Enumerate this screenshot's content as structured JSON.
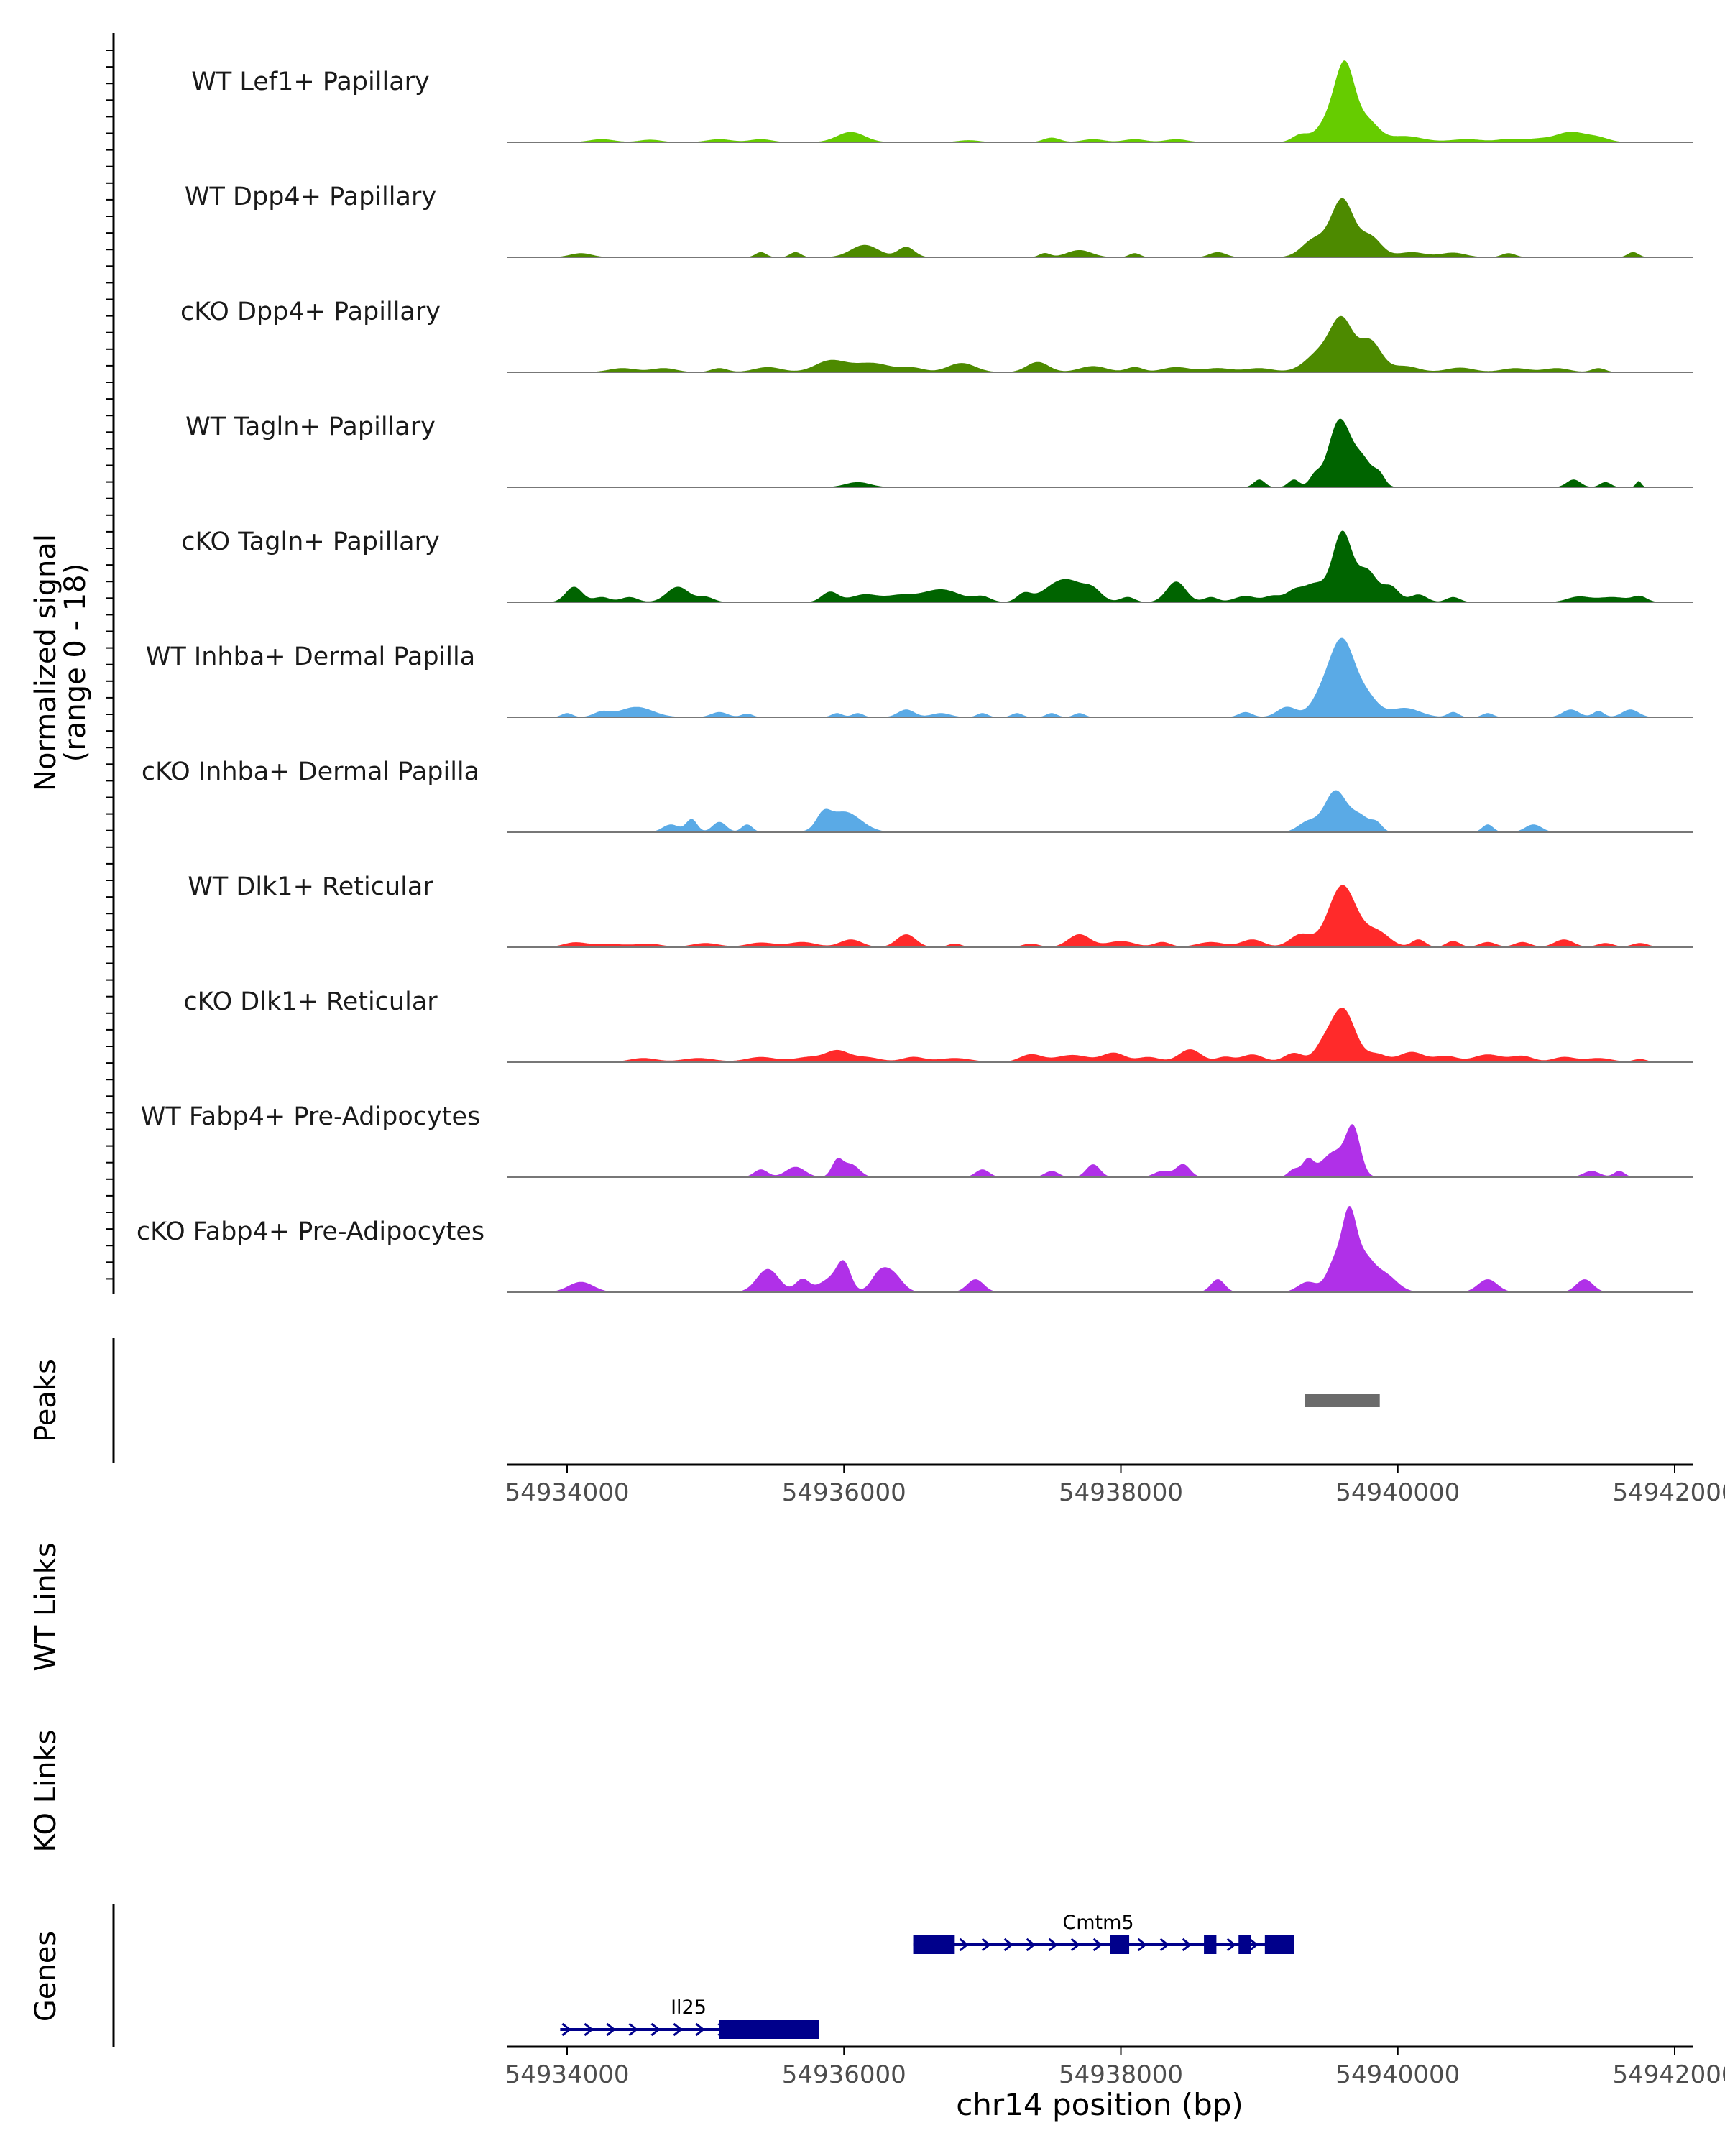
{
  "chart_data": {
    "type": "area",
    "title": "",
    "xlabel": "chr14 position (bp)",
    "ylabel": "Normalized signal",
    "ylabel_range": "(range 0 - 18)",
    "ylim": [
      0,
      18
    ],
    "xlim": [
      54933600,
      54942000
    ],
    "x_ticks": [
      54934000,
      54936000,
      54938000,
      54940000,
      54942000
    ],
    "x_tick_labels": [
      "54934000",
      "54936000",
      "54938000",
      "54940000",
      "54942000"
    ],
    "tracks": [
      {
        "name": "WT Lef1+ Papillary",
        "color": "#66cc00",
        "peaks": [
          [
            54934250,
            0.6,
            90
          ],
          [
            54934600,
            0.5,
            80
          ],
          [
            54935100,
            0.6,
            90
          ],
          [
            54935400,
            0.6,
            80
          ],
          [
            54936050,
            2.0,
            100
          ],
          [
            54936900,
            0.4,
            80
          ],
          [
            54937500,
            0.9,
            60
          ],
          [
            54937800,
            0.6,
            80
          ],
          [
            54938100,
            0.6,
            80
          ],
          [
            54938400,
            0.6,
            80
          ],
          [
            54939300,
            1.5,
            60
          ],
          [
            54939500,
            4.0,
            80
          ],
          [
            54939620,
            14.0,
            70
          ],
          [
            54939780,
            4.0,
            80
          ],
          [
            54940050,
            1.2,
            130
          ],
          [
            54940500,
            0.6,
            120
          ],
          [
            54940800,
            0.6,
            80
          ],
          [
            54941000,
            0.6,
            90
          ],
          [
            54941250,
            2.0,
            110
          ],
          [
            54941450,
            0.8,
            80
          ]
        ]
      },
      {
        "name": "WT Dpp4+ Papillary",
        "color": "#4d8a00",
        "peaks": [
          [
            54934100,
            0.8,
            80
          ],
          [
            54935400,
            1.0,
            40
          ],
          [
            54935650,
            1.0,
            40
          ],
          [
            54936150,
            2.4,
            100
          ],
          [
            54936450,
            2.0,
            60
          ],
          [
            54937450,
            0.8,
            40
          ],
          [
            54937700,
            1.4,
            90
          ],
          [
            54938100,
            0.8,
            40
          ],
          [
            54938700,
            1.0,
            60
          ],
          [
            54939400,
            3.5,
            90
          ],
          [
            54939600,
            11.0,
            80
          ],
          [
            54939800,
            4.0,
            80
          ],
          [
            54940100,
            1.0,
            100
          ],
          [
            54940400,
            0.9,
            90
          ],
          [
            54940800,
            0.8,
            50
          ],
          [
            54941700,
            1.0,
            40
          ]
        ]
      },
      {
        "name": "cKO Dpp4+ Papillary",
        "color": "#4d8a00",
        "peaks": [
          [
            54934400,
            0.8,
            100
          ],
          [
            54934700,
            0.8,
            90
          ],
          [
            54935100,
            0.8,
            60
          ],
          [
            54935450,
            1.0,
            100
          ],
          [
            54935900,
            2.2,
            110
          ],
          [
            54936200,
            1.8,
            140
          ],
          [
            54936500,
            0.8,
            80
          ],
          [
            54936850,
            1.8,
            100
          ],
          [
            54937400,
            2.0,
            80
          ],
          [
            54937800,
            1.2,
            100
          ],
          [
            54938100,
            1.0,
            60
          ],
          [
            54938400,
            1.0,
            100
          ],
          [
            54938700,
            0.8,
            100
          ],
          [
            54939000,
            0.8,
            100
          ],
          [
            54939450,
            4.0,
            110
          ],
          [
            54939600,
            9.0,
            80
          ],
          [
            54939800,
            6.0,
            80
          ],
          [
            54940050,
            1.2,
            100
          ],
          [
            54940450,
            0.9,
            100
          ],
          [
            54940850,
            0.8,
            100
          ],
          [
            54941150,
            0.8,
            90
          ],
          [
            54941450,
            0.8,
            50
          ]
        ]
      },
      {
        "name": "WT Tagln+ Papillary",
        "color": "#006400",
        "peaks": [
          [
            54936100,
            1.0,
            90
          ],
          [
            54939000,
            1.5,
            40
          ],
          [
            54939250,
            1.5,
            40
          ],
          [
            54939400,
            2.0,
            40
          ],
          [
            54939580,
            13.0,
            80
          ],
          [
            54939750,
            5.0,
            70
          ],
          [
            54939870,
            2.0,
            40
          ],
          [
            54941270,
            1.5,
            50
          ],
          [
            54941500,
            1.0,
            40
          ],
          [
            54941740,
            1.2,
            20
          ]
        ]
      },
      {
        "name": "cKO Tagln+ Papillary",
        "color": "#006400",
        "peaks": [
          [
            54934050,
            3.0,
            60
          ],
          [
            54934250,
            1.0,
            60
          ],
          [
            54934450,
            1.0,
            60
          ],
          [
            54934800,
            3.0,
            80
          ],
          [
            54935000,
            1.0,
            60
          ],
          [
            54935900,
            2.0,
            60
          ],
          [
            54936150,
            1.5,
            100
          ],
          [
            54936400,
            1.2,
            100
          ],
          [
            54936700,
            2.5,
            140
          ],
          [
            54937000,
            1.0,
            60
          ],
          [
            54937300,
            1.5,
            50
          ],
          [
            54937600,
            4.5,
            140
          ],
          [
            54937800,
            1.5,
            60
          ],
          [
            54938050,
            1.0,
            50
          ],
          [
            54938400,
            4.0,
            70
          ],
          [
            54938650,
            1.0,
            50
          ],
          [
            54938900,
            1.2,
            80
          ],
          [
            54939100,
            1.2,
            60
          ],
          [
            54939250,
            2.0,
            60
          ],
          [
            54939400,
            3.5,
            80
          ],
          [
            54939600,
            13.5,
            70
          ],
          [
            54939780,
            6.0,
            70
          ],
          [
            54939950,
            3.0,
            60
          ],
          [
            54940150,
            1.5,
            60
          ],
          [
            54940400,
            1.0,
            50
          ],
          [
            54941300,
            1.0,
            80
          ],
          [
            54941550,
            1.0,
            120
          ],
          [
            54941750,
            1.0,
            50
          ]
        ]
      },
      {
        "name": "WT Inhba+ Dermal Papilla",
        "color": "#5aaae6",
        "peaks": [
          [
            54934000,
            0.8,
            40
          ],
          [
            54934250,
            1.0,
            60
          ],
          [
            54934500,
            2.0,
            120
          ],
          [
            54935100,
            1.0,
            60
          ],
          [
            54935300,
            0.7,
            40
          ],
          [
            54935950,
            0.8,
            40
          ],
          [
            54936100,
            0.8,
            40
          ],
          [
            54936450,
            1.5,
            60
          ],
          [
            54936700,
            0.8,
            70
          ],
          [
            54937000,
            0.8,
            40
          ],
          [
            54937250,
            0.8,
            40
          ],
          [
            54937500,
            0.8,
            40
          ],
          [
            54937700,
            0.8,
            40
          ],
          [
            54938900,
            1.0,
            50
          ],
          [
            54939200,
            2.0,
            70
          ],
          [
            54939450,
            3.5,
            80
          ],
          [
            54939600,
            14.5,
            90
          ],
          [
            54939780,
            3.5,
            80
          ],
          [
            54940050,
            1.8,
            110
          ],
          [
            54940400,
            1.0,
            40
          ],
          [
            54940650,
            0.8,
            40
          ],
          [
            54941250,
            1.5,
            60
          ],
          [
            54941450,
            1.2,
            40
          ],
          [
            54941680,
            1.5,
            60
          ]
        ]
      },
      {
        "name": "cKO Inhba+ Dermal Papilla",
        "color": "#5aaae6",
        "peaks": [
          [
            54934750,
            1.5,
            60
          ],
          [
            54934900,
            2.5,
            40
          ],
          [
            54935100,
            2.0,
            50
          ],
          [
            54935300,
            1.5,
            40
          ],
          [
            54935850,
            2.5,
            50
          ],
          [
            54936000,
            4.0,
            120
          ],
          [
            54939350,
            2.0,
            70
          ],
          [
            54939550,
            8.0,
            80
          ],
          [
            54939730,
            3.0,
            70
          ],
          [
            54939850,
            1.5,
            40
          ],
          [
            54940650,
            1.5,
            40
          ],
          [
            54940980,
            1.5,
            60
          ]
        ]
      },
      {
        "name": "WT Dlk1+ Reticular",
        "color": "#ff2a2a",
        "peaks": [
          [
            54934050,
            0.8,
            80
          ],
          [
            54934300,
            0.6,
            150
          ],
          [
            54934600,
            0.6,
            90
          ],
          [
            54935000,
            0.8,
            100
          ],
          [
            54935400,
            0.9,
            100
          ],
          [
            54935700,
            1.0,
            100
          ],
          [
            54936050,
            1.5,
            80
          ],
          [
            54936450,
            2.5,
            70
          ],
          [
            54936800,
            0.7,
            50
          ],
          [
            54937350,
            0.7,
            60
          ],
          [
            54937700,
            2.5,
            80
          ],
          [
            54938000,
            1.2,
            100
          ],
          [
            54938300,
            1.0,
            60
          ],
          [
            54938650,
            1.0,
            100
          ],
          [
            54938950,
            1.5,
            80
          ],
          [
            54939300,
            2.5,
            80
          ],
          [
            54939600,
            12.0,
            100
          ],
          [
            54939850,
            3.0,
            90
          ],
          [
            54940150,
            1.5,
            50
          ],
          [
            54940400,
            1.2,
            50
          ],
          [
            54940650,
            1.0,
            60
          ],
          [
            54940900,
            1.0,
            60
          ],
          [
            54941200,
            1.5,
            70
          ],
          [
            54941500,
            0.8,
            60
          ],
          [
            54941750,
            0.8,
            60
          ]
        ]
      },
      {
        "name": "cKO Dlk1+ Reticular",
        "color": "#ff2a2a",
        "peaks": [
          [
            54934550,
            0.8,
            100
          ],
          [
            54934950,
            0.8,
            120
          ],
          [
            54935400,
            1.0,
            110
          ],
          [
            54935750,
            1.0,
            110
          ],
          [
            54935950,
            2.0,
            80
          ],
          [
            54936150,
            1.0,
            110
          ],
          [
            54936500,
            1.0,
            80
          ],
          [
            54936800,
            0.8,
            120
          ],
          [
            54937350,
            1.5,
            80
          ],
          [
            54937650,
            1.4,
            120
          ],
          [
            54937950,
            1.8,
            80
          ],
          [
            54938200,
            1.0,
            80
          ],
          [
            54938500,
            2.5,
            80
          ],
          [
            54938750,
            1.0,
            60
          ],
          [
            54938950,
            1.5,
            80
          ],
          [
            54939250,
            1.8,
            70
          ],
          [
            54939450,
            2.0,
            60
          ],
          [
            54939600,
            10.5,
            90
          ],
          [
            54939850,
            1.5,
            70
          ],
          [
            54940100,
            2.0,
            90
          ],
          [
            54940350,
            1.2,
            80
          ],
          [
            54940650,
            1.5,
            100
          ],
          [
            54940900,
            1.2,
            80
          ],
          [
            54941200,
            1.0,
            80
          ],
          [
            54941450,
            0.8,
            100
          ],
          [
            54941750,
            0.6,
            50
          ]
        ]
      },
      {
        "name": "WT Fabp4+ Pre-Adipocytes",
        "color": "#b030e8",
        "peaks": [
          [
            54935400,
            1.5,
            50
          ],
          [
            54935650,
            2.0,
            70
          ],
          [
            54935950,
            3.0,
            40
          ],
          [
            54936050,
            2.5,
            60
          ],
          [
            54937000,
            1.5,
            50
          ],
          [
            54937500,
            1.2,
            50
          ],
          [
            54937800,
            2.5,
            50
          ],
          [
            54938300,
            1.2,
            60
          ],
          [
            54938450,
            2.5,
            50
          ],
          [
            54939250,
            1.5,
            40
          ],
          [
            54939350,
            3.0,
            40
          ],
          [
            54939550,
            5.0,
            100
          ],
          [
            54939680,
            8.0,
            50
          ],
          [
            54941400,
            1.2,
            60
          ],
          [
            54941600,
            1.2,
            40
          ]
        ]
      },
      {
        "name": "cKO Fabp4+ Pre-Adipocytes",
        "color": "#b030e8",
        "peaks": [
          [
            54934100,
            2.0,
            90
          ],
          [
            54935450,
            4.5,
            80
          ],
          [
            54935700,
            2.5,
            50
          ],
          [
            54935900,
            2.5,
            80
          ],
          [
            54936000,
            5.0,
            50
          ],
          [
            54936250,
            3.0,
            60
          ],
          [
            54936350,
            3.5,
            70
          ],
          [
            54936950,
            2.5,
            60
          ],
          [
            54938700,
            2.5,
            50
          ],
          [
            54939350,
            2.0,
            70
          ],
          [
            54939550,
            6.0,
            60
          ],
          [
            54939650,
            13.0,
            50
          ],
          [
            54939750,
            6.0,
            70
          ],
          [
            54939900,
            3.5,
            90
          ],
          [
            54940650,
            2.5,
            70
          ],
          [
            54941350,
            2.5,
            60
          ]
        ]
      }
    ],
    "peaks_track": {
      "label": "Peaks",
      "color": "#6b6b6b",
      "intervals": [
        [
          54939330,
          54939870
        ]
      ]
    },
    "links_tracks": [
      {
        "label": "WT Links",
        "links": []
      },
      {
        "label": "KO Links",
        "links": []
      }
    ],
    "genes_track": {
      "label": "Genes",
      "color": "#00008b",
      "genes": [
        {
          "name": "Cmtm5",
          "start": 54936500,
          "end": 54939250,
          "strand": "+",
          "row": 0,
          "exons": [
            [
              54936500,
              54936800
            ],
            [
              54937920,
              54938060
            ],
            [
              54938600,
              54938690
            ],
            [
              54938850,
              54938940
            ],
            [
              54939040,
              54939250
            ]
          ]
        },
        {
          "name": "Il25",
          "start": 54933950,
          "end": 54935820,
          "strand": "+",
          "row": 1,
          "exons": [
            [
              54935100,
              54935820
            ]
          ]
        }
      ]
    }
  }
}
